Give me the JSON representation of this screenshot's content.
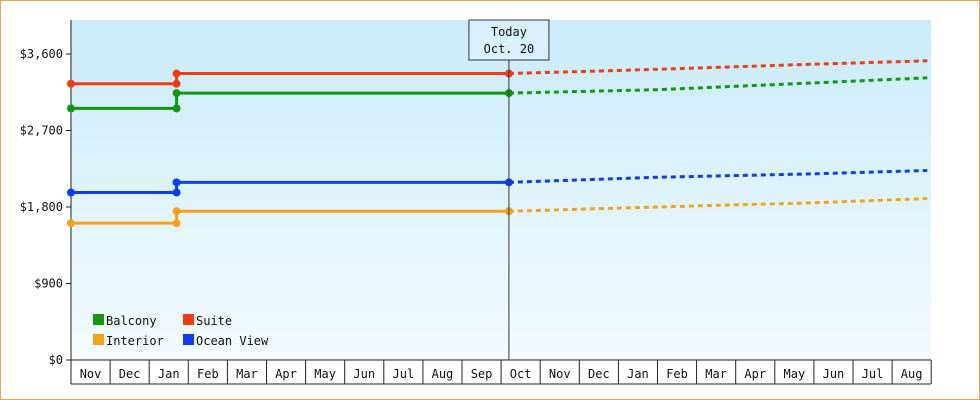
{
  "chart_data": {
    "type": "line",
    "title": "",
    "xlabel": "",
    "ylabel": "",
    "ylim": [
      0,
      4000
    ],
    "y_ticks": [
      "$0",
      "$900",
      "$1,800",
      "$2,700",
      "$3,600"
    ],
    "y_tick_values": [
      0,
      900,
      1800,
      2700,
      3600
    ],
    "x_categories": [
      "Nov",
      "Dec",
      "Jan",
      "Feb",
      "Mar",
      "Apr",
      "May",
      "Jun",
      "Jul",
      "Aug",
      "Sep",
      "Oct",
      "Nov",
      "Dec",
      "Jan",
      "Feb",
      "Mar",
      "Apr",
      "May",
      "Jun",
      "Jul",
      "Aug"
    ],
    "today_marker": {
      "line1": "Today",
      "line2": "Oct. 20",
      "x": 11.2
    },
    "legend_position": "bottom-left",
    "grid": false,
    "series": [
      {
        "name": "Balcony",
        "color": "#109910",
        "points": [
          [
            0,
            2960
          ],
          [
            2.7,
            2960
          ],
          [
            2.7,
            3140
          ],
          [
            11.2,
            3140
          ]
        ],
        "forecast": [
          [
            11.2,
            3140
          ],
          [
            15,
            3180
          ],
          [
            19,
            3260
          ],
          [
            21.9,
            3320
          ]
        ]
      },
      {
        "name": "Suite",
        "color": "#f23c10",
        "points": [
          [
            0,
            3250
          ],
          [
            2.7,
            3250
          ],
          [
            2.7,
            3370
          ],
          [
            11.2,
            3370
          ]
        ],
        "forecast": [
          [
            11.2,
            3370
          ],
          [
            15,
            3420
          ],
          [
            19,
            3480
          ],
          [
            21.9,
            3520
          ]
        ]
      },
      {
        "name": "Interior",
        "color": "#f6a11b",
        "points": [
          [
            0,
            1610
          ],
          [
            2.7,
            1610
          ],
          [
            2.7,
            1750
          ],
          [
            11.2,
            1750
          ]
        ],
        "forecast": [
          [
            11.2,
            1750
          ],
          [
            15,
            1800
          ],
          [
            19,
            1850
          ],
          [
            21.9,
            1900
          ]
        ]
      },
      {
        "name": "Ocean View",
        "color": "#0c3ef0",
        "points": [
          [
            0,
            1970
          ],
          [
            2.7,
            1970
          ],
          [
            2.7,
            2090
          ],
          [
            11.2,
            2090
          ]
        ],
        "forecast": [
          [
            11.2,
            2090
          ],
          [
            15,
            2150
          ],
          [
            19,
            2190
          ],
          [
            21.9,
            2230
          ]
        ]
      }
    ]
  }
}
